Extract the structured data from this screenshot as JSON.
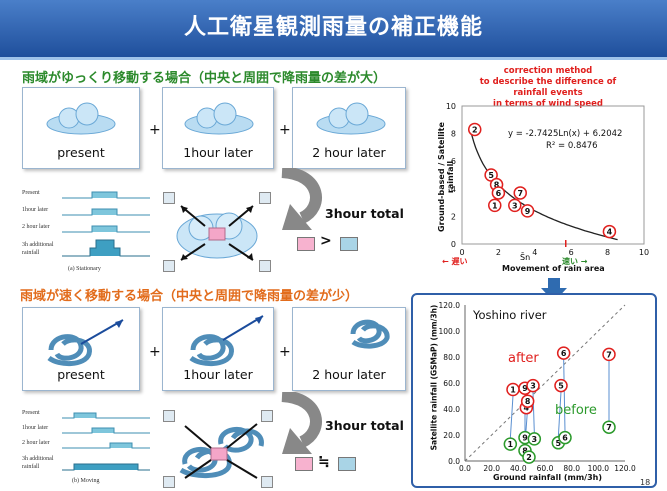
{
  "title": "人工衛星観測雨量の補正機能",
  "slow": {
    "heading": "雨域がゆっくり移動する場合（中央と周囲で降雨量の差が大）",
    "panels": [
      "present",
      "1hour later",
      "2 hour later"
    ],
    "diagram_rows": [
      "Present",
      "1hour later",
      "2 hour later",
      "3h additional rainfall"
    ],
    "caption": "(a) Stationary",
    "total": "3hour total",
    "relation": ">"
  },
  "fast": {
    "heading": "雨域が速く移動する場合（中央と周囲で降雨量の差が少）",
    "panels": [
      "present",
      "1hour later",
      "2 hour later"
    ],
    "diagram_rows": [
      "Present",
      "1hour later",
      "2 hour later",
      "3h additional rainfall"
    ],
    "caption": "(b) Moving",
    "total": "3hour total",
    "relation": "≒"
  },
  "correction": {
    "line1": "correction method",
    "line2": "to describe  the difference of rainfall events",
    "line3": "in terms of wind speed"
  },
  "page_number": "18",
  "chart_data": [
    {
      "type": "scatter",
      "ylabel": "Ground-based / Satellite rainfall",
      "xlabel": "Movement of rain area",
      "xlim": [
        0,
        10
      ],
      "ylim": [
        0,
        10
      ],
      "xticks": [
        "0",
        "2",
        "4",
        "6",
        "8",
        "10"
      ],
      "yticks": [
        "0",
        "2",
        "4",
        "6",
        "8",
        "10"
      ],
      "equation": "y = -2.7425Ln(x) + 6.2042",
      "r2": "R² = 0.8476",
      "annotations": {
        "slow": "← 遅い",
        "fast": "速い →",
        "mean": "S̄n"
      },
      "points": [
        {
          "label": "2",
          "x": 0.7,
          "y": 8.3
        },
        {
          "label": "5",
          "x": 1.6,
          "y": 5.0
        },
        {
          "label": "8",
          "x": 1.9,
          "y": 4.3
        },
        {
          "label": "6",
          "x": 2.0,
          "y": 3.7
        },
        {
          "label": "7",
          "x": 3.2,
          "y": 3.7
        },
        {
          "label": "1",
          "x": 1.8,
          "y": 2.8
        },
        {
          "label": "3",
          "x": 2.9,
          "y": 2.8
        },
        {
          "label": "9",
          "x": 3.6,
          "y": 2.4
        },
        {
          "label": "4",
          "x": 8.1,
          "y": 0.9
        }
      ]
    },
    {
      "type": "scatter",
      "title": "Yoshino river",
      "xlabel": "Ground rainfall (mm/3h)",
      "ylabel": "Satellite rainfall (GSMaP) (mm/3h)",
      "xlim": [
        0,
        120
      ],
      "ylim": [
        0,
        120
      ],
      "xticks": [
        "0.0",
        "20.0",
        "40.0",
        "60.0",
        "80.0",
        "100.0",
        "120.0"
      ],
      "yticks": [
        "0.0",
        "20.0",
        "40.0",
        "60.0",
        "80.0",
        "100.0",
        "120.0"
      ],
      "series": [
        {
          "name": "after",
          "color": "#e0201e",
          "points": [
            {
              "label": "1",
              "x": 36,
              "y": 55
            },
            {
              "label": "9",
              "x": 45,
              "y": 56
            },
            {
              "label": "3",
              "x": 51,
              "y": 58
            },
            {
              "label": "4",
              "x": 46,
              "y": 41
            },
            {
              "label": "8",
              "x": 47,
              "y": 46
            },
            {
              "label": "5",
              "x": 72,
              "y": 58
            },
            {
              "label": "6",
              "x": 74,
              "y": 83
            },
            {
              "label": "7",
              "x": 108,
              "y": 82
            }
          ]
        },
        {
          "name": "before",
          "color": "#2c9a2c",
          "points": [
            {
              "label": "1",
              "x": 34,
              "y": 13
            },
            {
              "label": "9",
              "x": 45,
              "y": 18
            },
            {
              "label": "3",
              "x": 52,
              "y": 17
            },
            {
              "label": "8",
              "x": 45,
              "y": 8
            },
            {
              "label": "2",
              "x": 48,
              "y": 3
            },
            {
              "label": "5",
              "x": 70,
              "y": 14
            },
            {
              "label": "6",
              "x": 75,
              "y": 18
            },
            {
              "label": "7",
              "x": 108,
              "y": 26
            }
          ]
        }
      ]
    }
  ]
}
